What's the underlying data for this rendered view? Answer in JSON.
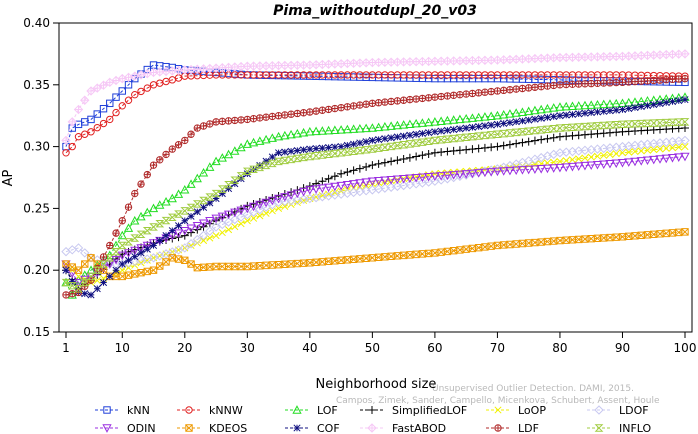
{
  "chart_data": {
    "type": "line",
    "title": "Pima_withoutdupl_20_v03",
    "xlabel": "Neighborhood size",
    "ylabel": "AP",
    "xlim": [
      1,
      100
    ],
    "ylim": [
      0.15,
      0.4
    ],
    "xticks": [
      1,
      10,
      20,
      30,
      40,
      50,
      60,
      70,
      80,
      90,
      100
    ],
    "yticks": [
      0.15,
      0.2,
      0.25,
      0.3,
      0.35,
      0.4
    ],
    "ytick_labels": [
      "0.15",
      "0.20",
      "0.25",
      "0.30",
      "0.35",
      "0.40"
    ],
    "grid": false,
    "legend_position": "bottom",
    "watermark": [
      "Unsupervised Outlier Detection. DAMI, 2015.",
      "Campos, Zimek, Sander, Campello, Micenkova, Schubert, Assent, Houle"
    ],
    "series": [
      {
        "name": "kNN",
        "color": "#1f3fd9",
        "marker": "square",
        "points": [
          [
            1,
            0.3
          ],
          [
            2,
            0.315
          ],
          [
            3,
            0.318
          ],
          [
            5,
            0.322
          ],
          [
            8,
            0.335
          ],
          [
            10,
            0.345
          ],
          [
            12,
            0.355
          ],
          [
            15,
            0.366
          ],
          [
            18,
            0.364
          ],
          [
            20,
            0.362
          ],
          [
            25,
            0.36
          ],
          [
            30,
            0.358
          ],
          [
            40,
            0.357
          ],
          [
            50,
            0.356
          ],
          [
            60,
            0.355
          ],
          [
            70,
            0.355
          ],
          [
            80,
            0.354
          ],
          [
            90,
            0.353
          ],
          [
            100,
            0.352
          ]
        ]
      },
      {
        "name": "kNNW",
        "color": "#e02020",
        "marker": "circle",
        "points": [
          [
            1,
            0.295
          ],
          [
            2,
            0.3
          ],
          [
            3,
            0.308
          ],
          [
            5,
            0.312
          ],
          [
            8,
            0.322
          ],
          [
            10,
            0.333
          ],
          [
            12,
            0.342
          ],
          [
            15,
            0.35
          ],
          [
            18,
            0.354
          ],
          [
            20,
            0.357
          ],
          [
            25,
            0.358
          ],
          [
            30,
            0.358
          ],
          [
            40,
            0.358
          ],
          [
            50,
            0.358
          ],
          [
            60,
            0.358
          ],
          [
            70,
            0.358
          ],
          [
            80,
            0.358
          ],
          [
            90,
            0.358
          ],
          [
            100,
            0.357
          ]
        ]
      },
      {
        "name": "LOF",
        "color": "#22dd22",
        "marker": "triangle-up",
        "points": [
          [
            1,
            0.19
          ],
          [
            2,
            0.18
          ],
          [
            3,
            0.192
          ],
          [
            5,
            0.2
          ],
          [
            8,
            0.212
          ],
          [
            10,
            0.228
          ],
          [
            12,
            0.24
          ],
          [
            15,
            0.25
          ],
          [
            18,
            0.258
          ],
          [
            20,
            0.265
          ],
          [
            25,
            0.288
          ],
          [
            30,
            0.302
          ],
          [
            35,
            0.308
          ],
          [
            40,
            0.312
          ],
          [
            50,
            0.315
          ],
          [
            60,
            0.32
          ],
          [
            70,
            0.325
          ],
          [
            80,
            0.332
          ],
          [
            90,
            0.335
          ],
          [
            100,
            0.34
          ]
        ]
      },
      {
        "name": "SimplifiedLOF",
        "color": "#000000",
        "marker": "plus",
        "points": [
          [
            1,
            0.2
          ],
          [
            3,
            0.185
          ],
          [
            5,
            0.192
          ],
          [
            8,
            0.205
          ],
          [
            10,
            0.213
          ],
          [
            15,
            0.222
          ],
          [
            20,
            0.228
          ],
          [
            25,
            0.24
          ],
          [
            30,
            0.252
          ],
          [
            35,
            0.26
          ],
          [
            40,
            0.268
          ],
          [
            45,
            0.278
          ],
          [
            50,
            0.285
          ],
          [
            55,
            0.29
          ],
          [
            60,
            0.295
          ],
          [
            70,
            0.3
          ],
          [
            80,
            0.308
          ],
          [
            90,
            0.312
          ],
          [
            100,
            0.315
          ]
        ]
      },
      {
        "name": "LoOP",
        "color": "#f0f000",
        "marker": "x",
        "points": [
          [
            1,
            0.205
          ],
          [
            3,
            0.195
          ],
          [
            5,
            0.19
          ],
          [
            8,
            0.195
          ],
          [
            10,
            0.2
          ],
          [
            15,
            0.21
          ],
          [
            20,
            0.218
          ],
          [
            25,
            0.228
          ],
          [
            30,
            0.24
          ],
          [
            35,
            0.25
          ],
          [
            40,
            0.258
          ],
          [
            50,
            0.27
          ],
          [
            60,
            0.278
          ],
          [
            70,
            0.282
          ],
          [
            80,
            0.288
          ],
          [
            90,
            0.295
          ],
          [
            100,
            0.3
          ]
        ]
      },
      {
        "name": "LDOF",
        "color": "#c8c8f0",
        "marker": "diamond",
        "points": [
          [
            1,
            0.215
          ],
          [
            3,
            0.218
          ],
          [
            5,
            0.21
          ],
          [
            8,
            0.205
          ],
          [
            10,
            0.205
          ],
          [
            15,
            0.21
          ],
          [
            20,
            0.218
          ],
          [
            25,
            0.235
          ],
          [
            30,
            0.245
          ],
          [
            35,
            0.255
          ],
          [
            40,
            0.258
          ],
          [
            50,
            0.265
          ],
          [
            60,
            0.272
          ],
          [
            70,
            0.282
          ],
          [
            80,
            0.295
          ],
          [
            90,
            0.3
          ],
          [
            100,
            0.305
          ]
        ]
      },
      {
        "name": "ODIN",
        "color": "#9a2ee0",
        "marker": "triangle-down",
        "points": [
          [
            1,
            0.205
          ],
          [
            3,
            0.19
          ],
          [
            5,
            0.195
          ],
          [
            8,
            0.205
          ],
          [
            10,
            0.212
          ],
          [
            15,
            0.222
          ],
          [
            20,
            0.232
          ],
          [
            25,
            0.242
          ],
          [
            30,
            0.25
          ],
          [
            35,
            0.258
          ],
          [
            40,
            0.265
          ],
          [
            50,
            0.272
          ],
          [
            60,
            0.276
          ],
          [
            70,
            0.28
          ],
          [
            80,
            0.283
          ],
          [
            90,
            0.287
          ],
          [
            100,
            0.292
          ]
        ]
      },
      {
        "name": "KDEOS",
        "color": "#ee9900",
        "marker": "square-x",
        "points": [
          [
            1,
            0.205
          ],
          [
            3,
            0.2
          ],
          [
            5,
            0.21
          ],
          [
            8,
            0.195
          ],
          [
            10,
            0.195
          ],
          [
            15,
            0.2
          ],
          [
            18,
            0.21
          ],
          [
            20,
            0.208
          ],
          [
            22,
            0.202
          ],
          [
            25,
            0.203
          ],
          [
            30,
            0.203
          ],
          [
            40,
            0.206
          ],
          [
            50,
            0.21
          ],
          [
            60,
            0.214
          ],
          [
            70,
            0.22
          ],
          [
            80,
            0.224
          ],
          [
            90,
            0.227
          ],
          [
            100,
            0.231
          ]
        ]
      },
      {
        "name": "COF",
        "color": "#101080",
        "marker": "star",
        "points": [
          [
            1,
            0.2
          ],
          [
            3,
            0.182
          ],
          [
            5,
            0.18
          ],
          [
            8,
            0.195
          ],
          [
            10,
            0.205
          ],
          [
            15,
            0.22
          ],
          [
            20,
            0.24
          ],
          [
            25,
            0.258
          ],
          [
            30,
            0.278
          ],
          [
            35,
            0.295
          ],
          [
            40,
            0.298
          ],
          [
            45,
            0.3
          ],
          [
            50,
            0.305
          ],
          [
            60,
            0.312
          ],
          [
            70,
            0.318
          ],
          [
            80,
            0.325
          ],
          [
            90,
            0.33
          ],
          [
            100,
            0.338
          ]
        ]
      },
      {
        "name": "FastABOD",
        "color": "#f6c8f6",
        "marker": "diamond-plus",
        "points": [
          [
            1,
            0.305
          ],
          [
            2,
            0.32
          ],
          [
            3,
            0.33
          ],
          [
            5,
            0.345
          ],
          [
            8,
            0.352
          ],
          [
            10,
            0.355
          ],
          [
            15,
            0.36
          ],
          [
            20,
            0.362
          ],
          [
            30,
            0.365
          ],
          [
            40,
            0.366
          ],
          [
            50,
            0.368
          ],
          [
            60,
            0.369
          ],
          [
            70,
            0.37
          ],
          [
            80,
            0.372
          ],
          [
            90,
            0.373
          ],
          [
            100,
            0.375
          ]
        ]
      },
      {
        "name": "LDF",
        "color": "#b02a2a",
        "marker": "circle-plus",
        "points": [
          [
            1,
            0.18
          ],
          [
            3,
            0.182
          ],
          [
            5,
            0.192
          ],
          [
            8,
            0.22
          ],
          [
            10,
            0.24
          ],
          [
            12,
            0.262
          ],
          [
            15,
            0.285
          ],
          [
            18,
            0.298
          ],
          [
            20,
            0.305
          ],
          [
            22,
            0.315
          ],
          [
            25,
            0.32
          ],
          [
            30,
            0.322
          ],
          [
            40,
            0.328
          ],
          [
            50,
            0.335
          ],
          [
            60,
            0.34
          ],
          [
            70,
            0.345
          ],
          [
            80,
            0.35
          ],
          [
            90,
            0.352
          ],
          [
            100,
            0.355
          ]
        ]
      },
      {
        "name": "INFLO",
        "color": "#a0cc40",
        "marker": "hourglass",
        "points": [
          [
            1,
            0.19
          ],
          [
            3,
            0.185
          ],
          [
            5,
            0.195
          ],
          [
            8,
            0.21
          ],
          [
            10,
            0.22
          ],
          [
            15,
            0.235
          ],
          [
            20,
            0.248
          ],
          [
            25,
            0.262
          ],
          [
            30,
            0.28
          ],
          [
            35,
            0.288
          ],
          [
            40,
            0.292
          ],
          [
            50,
            0.298
          ],
          [
            60,
            0.305
          ],
          [
            70,
            0.31
          ],
          [
            80,
            0.315
          ],
          [
            90,
            0.318
          ],
          [
            100,
            0.32
          ]
        ]
      }
    ],
    "legend_rows": [
      [
        "kNN",
        "kNNW",
        "LOF",
        "SimplifiedLOF",
        "LoOP",
        "LDOF"
      ],
      [
        "ODIN",
        "KDEOS",
        "COF",
        "FastABOD",
        "LDF",
        "INFLO"
      ]
    ]
  }
}
